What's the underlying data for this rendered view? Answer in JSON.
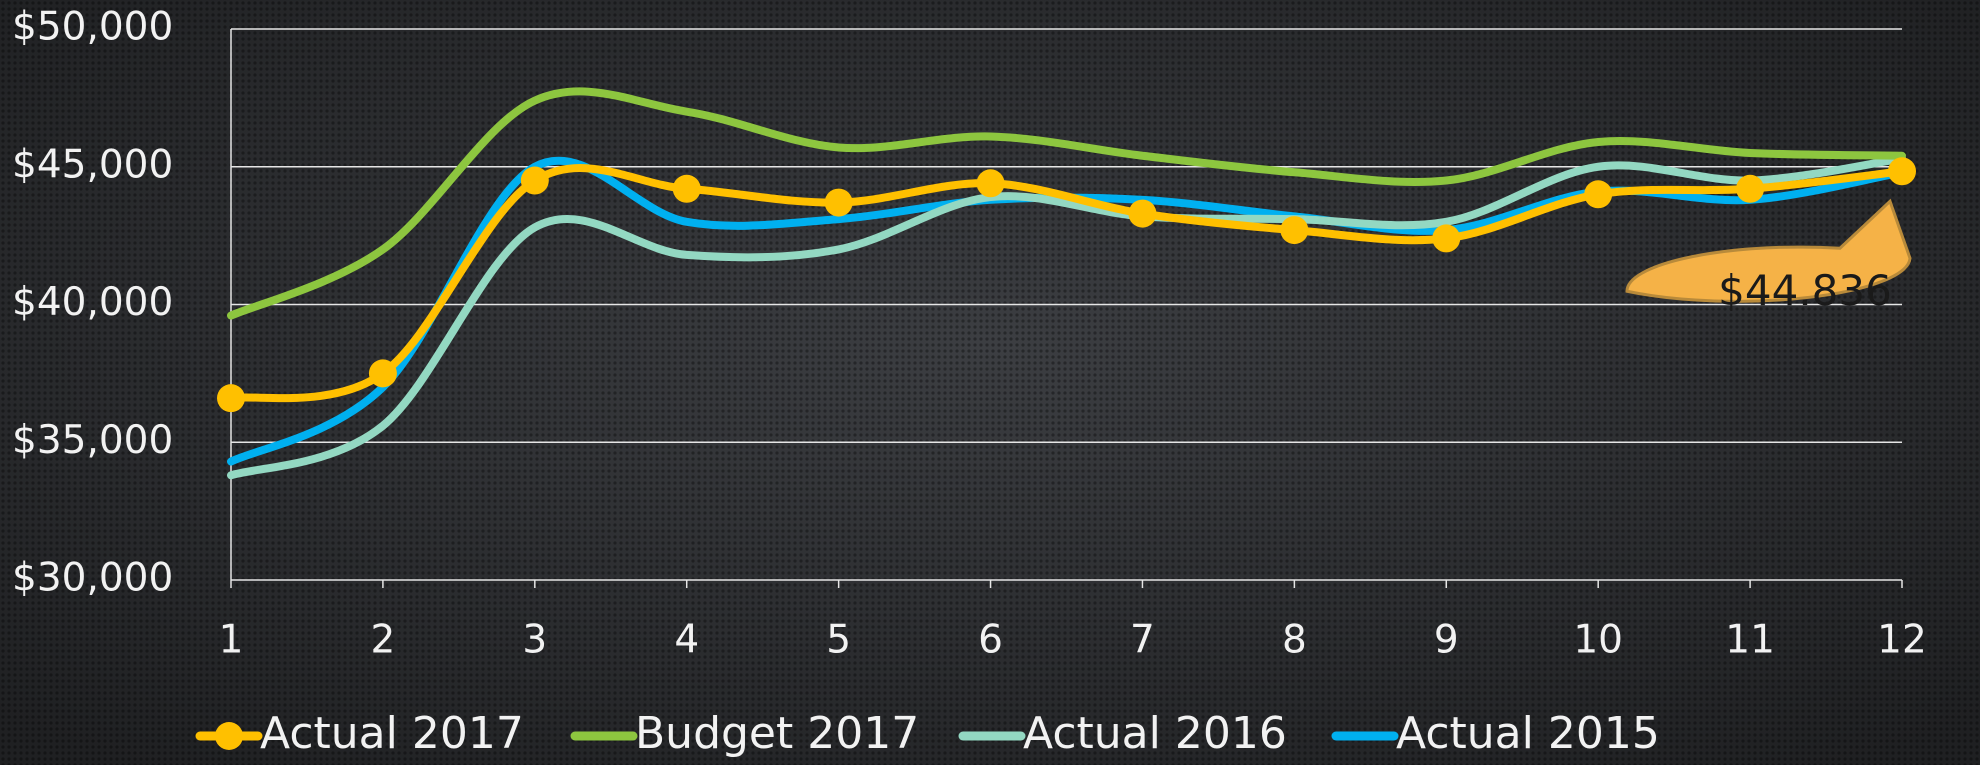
{
  "chart_data": {
    "type": "line",
    "categories": [
      "1",
      "2",
      "3",
      "4",
      "5",
      "6",
      "7",
      "8",
      "9",
      "10",
      "11",
      "12"
    ],
    "series": [
      {
        "name": "Actual 2017",
        "color": "#ffc000",
        "markers": true,
        "values": [
          36600,
          37500,
          44500,
          44200,
          43700,
          44400,
          43300,
          42700,
          42400,
          44000,
          44200,
          44836
        ],
        "value_labels": [
          null,
          null,
          null,
          null,
          null,
          null,
          null,
          null,
          null,
          null,
          null,
          "$44.836"
        ]
      },
      {
        "name": "Budget 2017",
        "color": "#8dc63f",
        "markers": false,
        "values": [
          39600,
          42000,
          47400,
          47000,
          45700,
          46100,
          45400,
          44800,
          44500,
          45900,
          45500,
          45400
        ]
      },
      {
        "name": "Actual 2016",
        "color": "#93d8c2",
        "markers": false,
        "values": [
          33800,
          35600,
          42800,
          41800,
          42000,
          43900,
          43200,
          43100,
          43000,
          45000,
          44500,
          45300
        ]
      },
      {
        "name": "Actual 2015",
        "color": "#00b0f0",
        "markers": false,
        "values": [
          34300,
          37000,
          45000,
          43000,
          43100,
          43800,
          43800,
          43200,
          42700,
          44100,
          43800,
          44800
        ]
      }
    ],
    "ylim": [
      30000,
      50000
    ],
    "yticks": [
      {
        "value": 30000,
        "label": "$30,000"
      },
      {
        "value": 35000,
        "label": "$35,000"
      },
      {
        "value": 40000,
        "label": "$40,000"
      },
      {
        "value": 45000,
        "label": "$45,000"
      },
      {
        "value": 50000,
        "label": "$50,000"
      }
    ],
    "grid": true,
    "smooth": true,
    "legend": "bottom"
  }
}
